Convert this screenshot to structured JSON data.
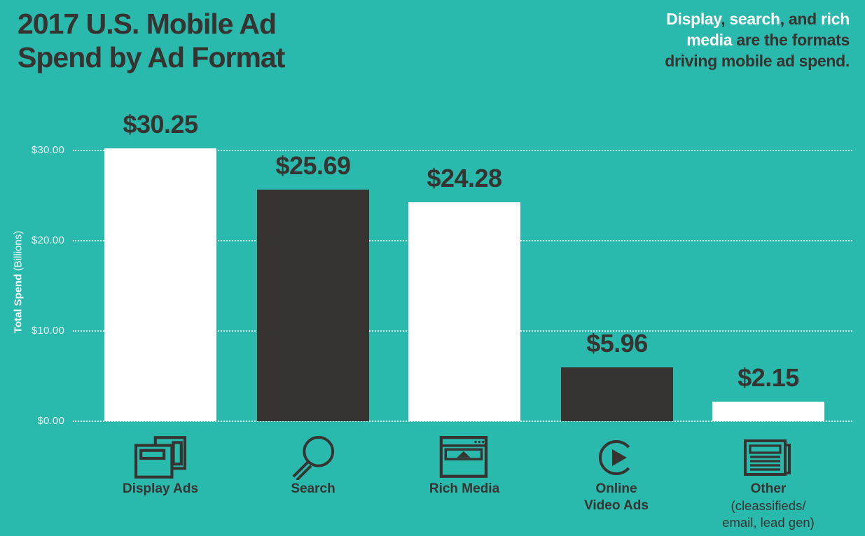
{
  "colors": {
    "background": "#2ab9ad",
    "dark": "#363330",
    "white": "#ffffff"
  },
  "title": {
    "line1": "2017 U.S. Mobile Ad",
    "line2": "Spend by Ad Format"
  },
  "annotation": {
    "full_text": "Display, search, and rich media are the formats driving mobile ad spend.",
    "lines": [
      [
        {
          "text": "Display",
          "white": true
        },
        {
          "text": ", ",
          "white": false
        },
        {
          "text": "search",
          "white": true
        },
        {
          "text": ", and ",
          "white": false
        },
        {
          "text": "rich",
          "white": true
        }
      ],
      [
        {
          "text": "media ",
          "white": true
        },
        {
          "text": "are the formats",
          "white": false
        }
      ],
      [
        {
          "text": "driving mobile ad spend.",
          "white": false
        }
      ]
    ]
  },
  "y_axis": {
    "title_bold": "Total Spend",
    "title_regular": " (Billions)",
    "ticks": [
      {
        "label": "$30.00",
        "value": 30
      },
      {
        "label": "$20.00",
        "value": 20
      },
      {
        "label": "$10.00",
        "value": 10
      },
      {
        "label": "$0.00",
        "value": 0
      }
    ]
  },
  "chart_data": {
    "type": "bar",
    "title": "2017 U.S. Mobile Ad Spend by Ad Format",
    "xlabel": "",
    "ylabel": "Total Spend (Billions)",
    "ylim": [
      0,
      33
    ],
    "grid": "horizontal dotted, ticks every $10.00",
    "legend": "none",
    "categories": [
      "Display Ads",
      "Search",
      "Rich Media",
      "Online Video Ads",
      "Other (cleassifieds/ email, lead gen)"
    ],
    "values": [
      30.25,
      25.69,
      24.28,
      5.96,
      2.15
    ],
    "value_labels": [
      "$30.25",
      "$25.69",
      "$24.28",
      "$5.96",
      "$2.15"
    ],
    "bar_colors": [
      "#ffffff",
      "#363330",
      "#ffffff",
      "#363330",
      "#ffffff"
    ]
  },
  "bars": [
    {
      "value_label": "$30.25",
      "label_line1": "Display Ads"
    },
    {
      "value_label": "$25.69",
      "label_line1": "Search"
    },
    {
      "value_label": "$24.28",
      "label_line1": "Rich Media"
    },
    {
      "value_label": "$5.96",
      "label_line1": "Online",
      "label_line2": "Video Ads"
    },
    {
      "value_label": "$2.15",
      "label_line1": "Other",
      "sub_line1": "(cleassifieds/",
      "sub_line2": "email, lead gen)"
    }
  ]
}
